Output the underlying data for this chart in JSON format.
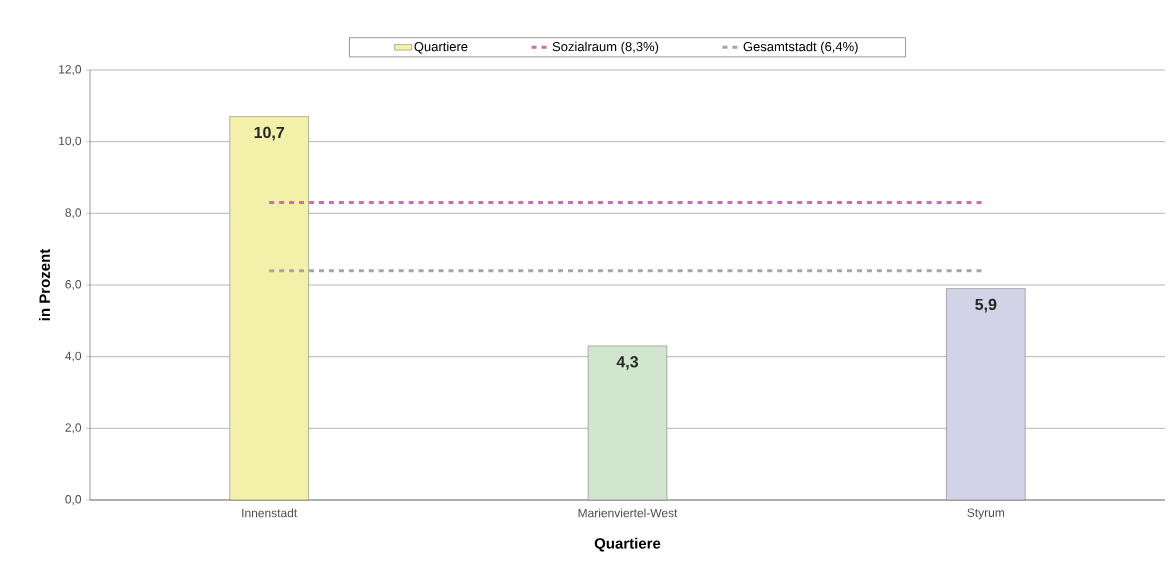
{
  "chart_data": {
    "type": "bar",
    "categories": [
      "Innenstadt",
      "Marienviertel-West",
      "Styrum"
    ],
    "series": [
      {
        "name": "Quartiere",
        "colors": [
          "#f3f0aa",
          "#d1e5cf",
          "#d3d3e7"
        ],
        "values": [
          10.7,
          4.3,
          5.9
        ],
        "value_labels": [
          "10,7",
          "4,3",
          "5,9"
        ]
      },
      {
        "name": "Sozialraum (8,3%)",
        "type": "line",
        "color": "#c86eb4",
        "line_style": "dashed",
        "values": [
          8.3,
          8.3,
          8.3
        ]
      },
      {
        "name": "Gesamtstadt (6,4%)",
        "type": "line",
        "color": "#a6a6a8",
        "line_style": "dashed",
        "values": [
          6.4,
          6.4,
          6.4
        ]
      }
    ],
    "xlabel": "Quartiere",
    "ylabel": "in Prozent",
    "ylim": [
      0,
      12
    ],
    "yticks": [
      {
        "value": 0,
        "label": "0,0"
      },
      {
        "value": 2,
        "label": "2,0"
      },
      {
        "value": 4,
        "label": "4,0"
      },
      {
        "value": 6,
        "label": "6,0"
      },
      {
        "value": 8,
        "label": "8,0"
      },
      {
        "value": 10,
        "label": "10,0"
      },
      {
        "value": 12,
        "label": "12,0"
      }
    ],
    "grid": "y",
    "legend": "top"
  }
}
